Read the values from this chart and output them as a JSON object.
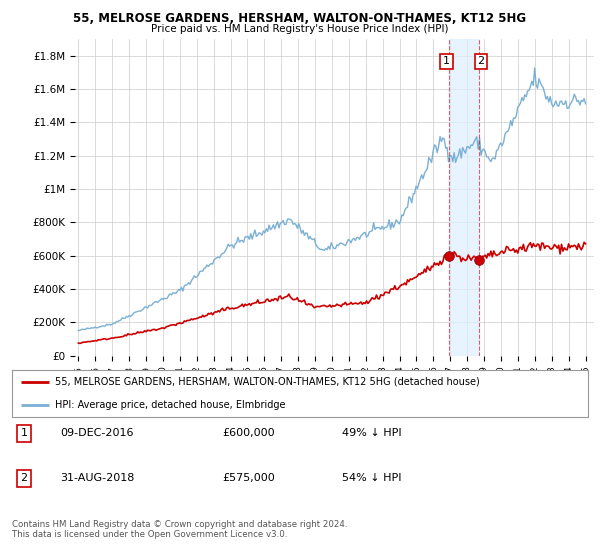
{
  "title1": "55, MELROSE GARDENS, HERSHAM, WALTON-ON-THAMES, KT12 5HG",
  "title2": "Price paid vs. HM Land Registry's House Price Index (HPI)",
  "ylabel_ticks": [
    "£0",
    "£200K",
    "£400K",
    "£600K",
    "£800K",
    "£1M",
    "£1.2M",
    "£1.4M",
    "£1.6M",
    "£1.8M"
  ],
  "ytick_values": [
    0,
    200000,
    400000,
    600000,
    800000,
    1000000,
    1200000,
    1400000,
    1600000,
    1800000
  ],
  "ylim": [
    0,
    1900000
  ],
  "xlim_start": 1994.8,
  "xlim_end": 2025.5,
  "hpi_color": "#7ab0d4",
  "price_color": "#cc0000",
  "marker1_x": 2016.94,
  "marker1_y": 600000,
  "marker2_x": 2018.67,
  "marker2_y": 575000,
  "vline1_x": 2016.94,
  "vline2_x": 2018.67,
  "legend_line1": "55, MELROSE GARDENS, HERSHAM, WALTON-ON-THAMES, KT12 5HG (detached house)",
  "legend_line2": "HPI: Average price, detached house, Elmbridge",
  "table_row1_num": "1",
  "table_row1_date": "09-DEC-2016",
  "table_row1_price": "£600,000",
  "table_row1_hpi": "49% ↓ HPI",
  "table_row2_num": "2",
  "table_row2_date": "31-AUG-2018",
  "table_row2_price": "£575,000",
  "table_row2_hpi": "54% ↓ HPI",
  "footnote": "Contains HM Land Registry data © Crown copyright and database right 2024.\nThis data is licensed under the Open Government Licence v3.0.",
  "background_color": "#ffffff",
  "grid_color": "#cccccc"
}
